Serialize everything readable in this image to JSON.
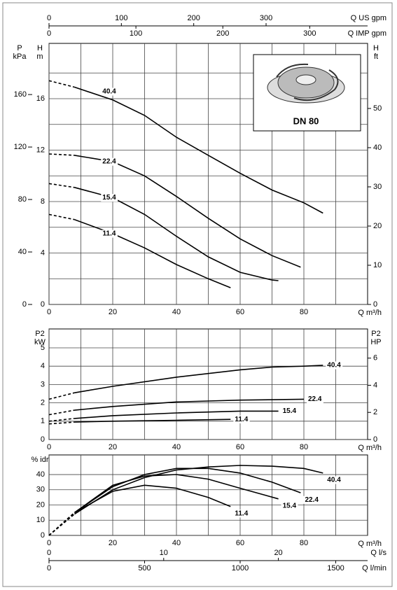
{
  "chart_data": [
    {
      "type": "line",
      "annotation": "DN 80",
      "xlabel": "Q m³/h",
      "xlim": [
        0,
        100
      ],
      "xticks": [
        0,
        20,
        40,
        60,
        80
      ],
      "minor_xgrid": [
        10,
        30,
        50,
        70,
        90
      ],
      "ylabel": "H",
      "yunit": "m",
      "ylim": [
        0,
        20.3
      ],
      "yticks": [
        0,
        4,
        8,
        12,
        16
      ],
      "minor_ygrid": [
        2,
        6,
        10,
        14,
        18
      ],
      "y_outer": {
        "label": "P",
        "unit": "kPa",
        "lim": [
          0,
          199
        ],
        "ticks": [
          0,
          40,
          80,
          120,
          160
        ]
      },
      "y2": {
        "label": "H",
        "unit": "ft",
        "lim": [
          0,
          66.6
        ],
        "ticks": [
          0,
          10,
          20,
          30,
          40,
          50
        ]
      },
      "top_axes": [
        {
          "label": "Q US gpm",
          "lim": [
            0,
            440.3
          ],
          "ticks": [
            0,
            100,
            200,
            300
          ]
        },
        {
          "label": "Q IMP gpm",
          "lim": [
            0,
            366.6
          ],
          "ticks": [
            0,
            100,
            200,
            300
          ]
        }
      ],
      "series": [
        {
          "name": "40.4",
          "color": "#000",
          "x": [
            0,
            8,
            20,
            30,
            40,
            50,
            60,
            70,
            80,
            86
          ],
          "values": [
            17.4,
            16.9,
            15.9,
            14.7,
            13.0,
            11.6,
            10.2,
            8.9,
            7.9,
            7.1
          ]
        },
        {
          "name": "22.4",
          "color": "#000",
          "x": [
            0,
            8,
            20,
            30,
            40,
            50,
            60,
            70,
            79
          ],
          "values": [
            11.7,
            11.6,
            11.1,
            10.0,
            8.4,
            6.7,
            5.1,
            3.8,
            2.9
          ]
        },
        {
          "name": "15.4",
          "color": "#000",
          "x": [
            0,
            8,
            20,
            30,
            40,
            50,
            60,
            70,
            72
          ],
          "values": [
            9.4,
            9.1,
            8.3,
            7.0,
            5.3,
            3.7,
            2.5,
            1.9,
            1.85
          ]
        },
        {
          "name": "11.4",
          "color": "#000",
          "x": [
            0,
            8,
            20,
            30,
            40,
            50,
            57
          ],
          "values": [
            7.0,
            6.6,
            5.5,
            4.4,
            3.1,
            2.0,
            1.3
          ]
        }
      ]
    },
    {
      "type": "line",
      "xlabel": "Q m³/h",
      "xlim": [
        0,
        100
      ],
      "xticks": [
        0,
        20,
        40,
        60,
        80
      ],
      "minor_xgrid": [
        10,
        30,
        50,
        70,
        90
      ],
      "ylabel": "P2",
      "yunit": "kW",
      "ylim": [
        0,
        6.03
      ],
      "yticks": [
        0,
        1,
        2,
        3,
        4,
        5
      ],
      "y2": {
        "label": "P2",
        "unit": "HP",
        "lim": [
          0,
          8.15
        ],
        "ticks": [
          0,
          2,
          4,
          6
        ]
      },
      "series": [
        {
          "name": "40.4",
          "color": "#000",
          "x": [
            0,
            8,
            20,
            40,
            60,
            70,
            80,
            86
          ],
          "values": [
            2.2,
            2.55,
            2.9,
            3.4,
            3.8,
            3.95,
            4.0,
            4.05
          ]
        },
        {
          "name": "22.4",
          "color": "#000",
          "x": [
            0,
            8,
            20,
            40,
            60,
            80
          ],
          "values": [
            1.35,
            1.6,
            1.8,
            2.05,
            2.15,
            2.2
          ]
        },
        {
          "name": "15.4",
          "color": "#000",
          "x": [
            0,
            8,
            20,
            40,
            60,
            72
          ],
          "values": [
            1.0,
            1.15,
            1.3,
            1.45,
            1.55,
            1.55
          ]
        },
        {
          "name": "11.4",
          "color": "#000",
          "x": [
            0,
            8,
            20,
            40,
            57
          ],
          "values": [
            0.85,
            0.95,
            1.0,
            1.05,
            1.1
          ]
        }
      ]
    },
    {
      "type": "line",
      "xlabel": "Q m³/h",
      "xlim": [
        0,
        100
      ],
      "xticks": [
        0,
        20,
        40,
        60,
        80
      ],
      "minor_xgrid": [
        10,
        30,
        50,
        70,
        90
      ],
      "ylabel": "% idr",
      "ylim": [
        0,
        52.9
      ],
      "yticks": [
        0,
        10,
        20,
        30,
        40
      ],
      "bottom_axes": [
        {
          "label": "Q l/s",
          "lim": [
            0,
            27.78
          ],
          "ticks": [
            0,
            10,
            20
          ]
        },
        {
          "label": "Q l/min",
          "lim": [
            0,
            1666.7
          ],
          "ticks": [
            0,
            500,
            1000,
            1500
          ]
        }
      ],
      "series": [
        {
          "name": "40.4",
          "color": "#000",
          "x": [
            0,
            8,
            20,
            30,
            40,
            50,
            60,
            70,
            80,
            86
          ],
          "values": [
            0,
            14,
            30,
            38,
            43,
            45,
            46,
            45.5,
            44,
            41
          ]
        },
        {
          "name": "22.4",
          "color": "#000",
          "x": [
            0,
            8,
            20,
            30,
            40,
            50,
            60,
            70,
            79
          ],
          "values": [
            0,
            15,
            32,
            40,
            44,
            44,
            41,
            35,
            28
          ]
        },
        {
          "name": "15.4",
          "color": "#000",
          "x": [
            0,
            8,
            20,
            30,
            40,
            50,
            60,
            72
          ],
          "values": [
            0,
            15,
            33,
            39,
            40,
            37,
            31,
            24
          ]
        },
        {
          "name": "11.4",
          "color": "#000",
          "x": [
            0,
            8,
            20,
            30,
            40,
            50,
            57
          ],
          "values": [
            0,
            15,
            29,
            33,
            31,
            25,
            19
          ]
        }
      ]
    }
  ]
}
